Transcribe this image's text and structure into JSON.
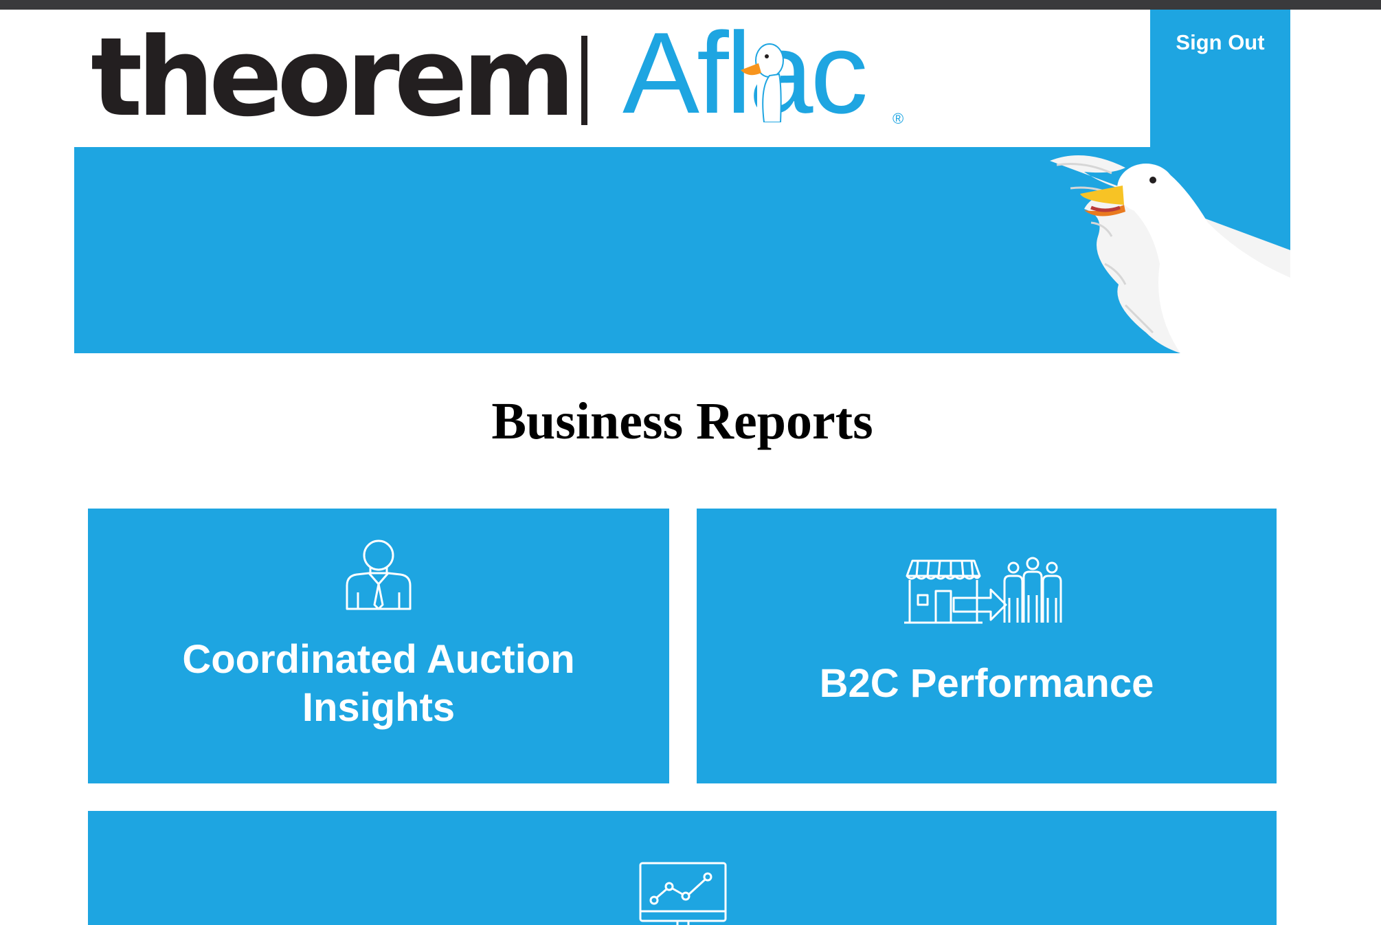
{
  "header": {
    "logo_theorem": "theorem",
    "logo_aflac": "Aflac",
    "logo_registered": "®",
    "sign_out_label": "Sign Out"
  },
  "page": {
    "title": "Business Reports"
  },
  "cards": [
    {
      "label_line1": "Coordinated Auction",
      "label_line2": "Insights",
      "icon": "businessperson-icon"
    },
    {
      "label": "B2C Performance",
      "icon": "store-to-customers-icon"
    },
    {
      "label": "",
      "icon": "line-chart-monitor-icon"
    }
  ],
  "colors": {
    "brand_blue": "#1ea5e1",
    "logo_dark": "#231f20",
    "top_bar": "#3a3a3c"
  }
}
